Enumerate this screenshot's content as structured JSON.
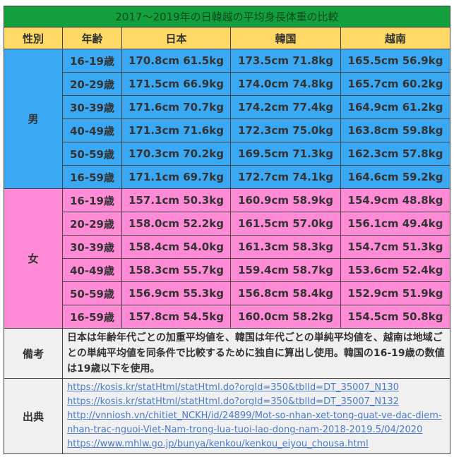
{
  "title": "2017～2019年の日韓越の平均身長体重の比較",
  "headers": [
    "性別",
    "年齢",
    "日本",
    "韓国",
    "越南"
  ],
  "male": {
    "label": "男",
    "rows": [
      [
        "16-19歳",
        "170.8cm 61.5kg",
        "173.5cm 71.8kg",
        "165.5cm 56.9kg"
      ],
      [
        "20-29歳",
        "171.5cm 66.9kg",
        "174.0cm 74.8kg",
        "165.7cm 60.2kg"
      ],
      [
        "30-39歳",
        "171.6cm 70.7kg",
        "174.2cm 77.4kg",
        "164.9cm 61.2kg"
      ],
      [
        "40-49歳",
        "171.3cm 71.6kg",
        "172.3cm 75.0kg",
        "163.8cm 59.8kg"
      ],
      [
        "50-59歳",
        "170.3cm 70.2kg",
        "169.5cm 71.3kg",
        "162.3cm 57.8kg"
      ],
      [
        "16-59歳",
        "171.1cm 69.7kg",
        "172.7cm 74.1kg",
        "164.6cm 59.2kg"
      ]
    ]
  },
  "female": {
    "label": "女",
    "rows": [
      [
        "16-19歳",
        "157.1cm 50.3kg",
        "160.9cm 58.9kg",
        "154.9cm 48.8kg"
      ],
      [
        "20-29歳",
        "158.0cm 52.2kg",
        "161.5cm 57.0kg",
        "156.1cm 49.4kg"
      ],
      [
        "30-39歳",
        "158.4cm 54.0kg",
        "161.3cm 58.3kg",
        "154.7cm 51.3kg"
      ],
      [
        "40-49歳",
        "158.3cm 55.7kg",
        "159.4cm 58.7kg",
        "153.6cm 52.4kg"
      ],
      [
        "50-59歳",
        "156.9cm 55.3kg",
        "156.8cm 58.4kg",
        "152.9cm 51.9kg"
      ],
      [
        "16-59歳",
        "157.8cm 54.5kg",
        "160.0cm 58.2kg",
        "154.5cm 50.8kg"
      ]
    ]
  },
  "remarks": {
    "label": "備考",
    "text": "日本は年齢年代ごとの加重平均値を、韓国は年代ごとの単純平均値を、越南は地域ごとの単純平均値を同条件で比較するために独自に算出し使用。韓国の16-19歳の数値は19歳以下を使用。"
  },
  "sources": {
    "label": "出典",
    "links": [
      "https://kosis.kr/statHtml/statHtml.do?orgId=350&tblId=DT_35007_N130",
      "https://kosis.kr/statHtml/statHtml.do?orgId=350&tblId=DT_35007_N132",
      "http://vnniosh.vn/chitiet_NCKH/id/24899/Mot-so-nhan-xet-tong-quat-ve-dac-diem-nhan-trac-nguoi-Viet-Nam-trong-lua-tuoi-lao-dong-nam-2018-2019.5/04/2020",
      "https://www.mhlw.go.jp/bunya/kenkou/kenkou_eiyou_chousa.html"
    ]
  },
  "colors": {
    "title": "#13a03c",
    "header": "#ffd966",
    "male": "#3aa8f2",
    "female": "#ff8ad6",
    "note": "#f0f0f0",
    "link": "#4a7cc9"
  }
}
